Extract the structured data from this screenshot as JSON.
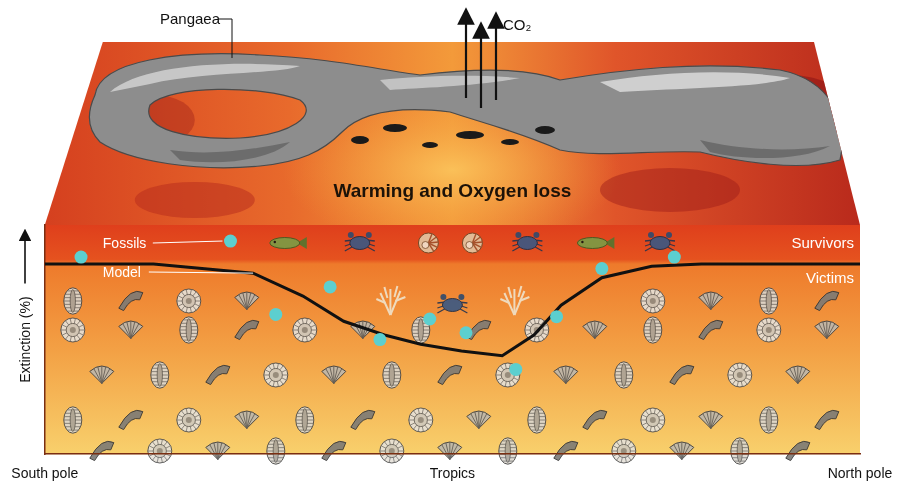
{
  "diagram": {
    "continent": "Pangaea",
    "gas": "CO₂",
    "heading": "Warming and Oxygen loss",
    "upper_band": "Survivors",
    "lower_band": "Victims"
  },
  "chart_data": {
    "type": "line",
    "y_label": "Extinction (%)",
    "xlim": [
      -90,
      90
    ],
    "xticks": [
      {
        "value": -90,
        "label": "South pole"
      },
      {
        "value": 0,
        "label": "Tropics"
      },
      {
        "value": 90,
        "label": "North pole"
      }
    ],
    "ylim": [
      0,
      100
    ],
    "tick_labels": "x",
    "grid": false,
    "series": [
      {
        "name": "Model",
        "type": "line",
        "color": "#111111",
        "line_style": "solid",
        "x": [
          -90,
          -66,
          -44,
          -33,
          -24,
          -15,
          -7,
          2,
          11,
          18,
          24,
          33,
          44,
          55,
          90
        ],
        "values": [
          83,
          83,
          79,
          69,
          58,
          52,
          48,
          45,
          43,
          52,
          65,
          77,
          82,
          83,
          83
        ]
      },
      {
        "name": "Fossils",
        "type": "scatter",
        "color": "#5ccfcf",
        "marker": "circle",
        "x": [
          -82,
          -49,
          -39,
          -27,
          -16,
          -5,
          3,
          14,
          23,
          33,
          49
        ],
        "values": [
          86,
          93,
          61,
          73,
          50,
          59,
          53,
          37,
          60,
          81,
          86
        ]
      }
    ]
  }
}
